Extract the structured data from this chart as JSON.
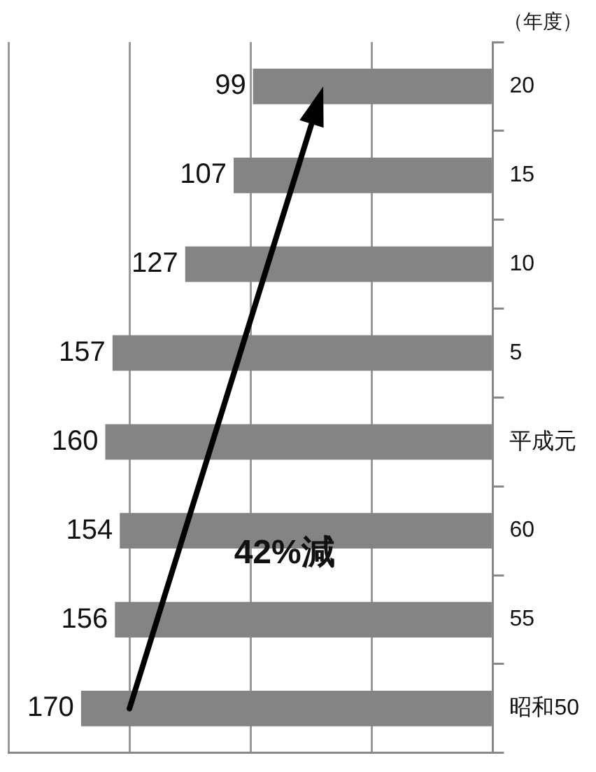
{
  "chart_data": {
    "type": "bar",
    "orientation": "horizontal",
    "xlabel": "（年度）",
    "categories": [
      "20",
      "15",
      "10",
      "5",
      "平成元",
      "60",
      "55",
      "昭和50"
    ],
    "values": [
      99,
      107,
      127,
      157,
      160,
      154,
      156,
      170
    ],
    "color": "#848484",
    "xlim": [
      200,
      0
    ],
    "xticks": [
      200,
      150,
      100,
      50,
      0
    ],
    "grid": "x",
    "legend": false,
    "tick_labels": "y",
    "data_labels": true,
    "annotations": [
      "42%減"
    ]
  }
}
